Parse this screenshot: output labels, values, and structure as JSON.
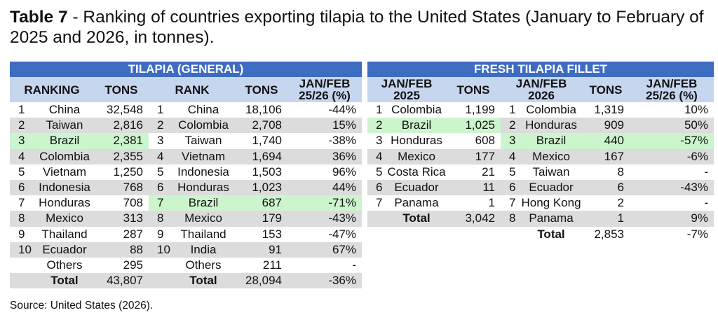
{
  "title": {
    "label": "Table 7",
    "text": " - Ranking of countries exporting tilapia to the United States (January to February of 2025 and 2026, in tonnes)."
  },
  "tables": [
    {
      "heading": "TILAPIA (GENERAL)",
      "columns": [
        "RANKING",
        "TONS",
        "RANK",
        "TONS",
        "JAN/FEB 25/26 (%)"
      ],
      "rows": [
        [
          "1",
          "China",
          "32,548",
          "1",
          "China",
          "18,106",
          "-44%"
        ],
        [
          "2",
          "Taiwan",
          "2,816",
          "2",
          "Colombia",
          "2,708",
          "15%"
        ],
        [
          "3",
          "Brazil",
          "2,381",
          "3",
          "Taiwan",
          "1,740",
          "-38%"
        ],
        [
          "4",
          "Colombia",
          "2,355",
          "4",
          "Vietnam",
          "1,694",
          "36%"
        ],
        [
          "5",
          "Vietnam",
          "1,250",
          "5",
          "Indonesia",
          "1,503",
          "96%"
        ],
        [
          "6",
          "Indonesia",
          "768",
          "6",
          "Honduras",
          "1,023",
          "44%"
        ],
        [
          "7",
          "Honduras",
          "708",
          "7",
          "Brazil",
          "687",
          "-71%"
        ],
        [
          "8",
          "Mexico",
          "313",
          "8",
          "Mexico",
          "179",
          "-43%"
        ],
        [
          "9",
          "Thailand",
          "287",
          "9",
          "Thailand",
          "153",
          "-47%"
        ],
        [
          "10",
          "Ecuador",
          "88",
          "10",
          "India",
          "91",
          "67%"
        ],
        [
          null,
          "Others",
          "295",
          null,
          "Others",
          "211",
          "-"
        ],
        [
          null,
          "Total",
          "43,807",
          null,
          "Total",
          "28,094",
          "-36%"
        ]
      ],
      "highlight": [
        {
          "row": 2,
          "block": 0
        },
        {
          "row": 6,
          "block": 1
        }
      ],
      "shaded_rows": [
        1,
        3,
        5,
        7,
        9,
        11
      ]
    },
    {
      "heading": "FRESH TILAPIA FILLET",
      "columns": [
        "JAN/FEB 2025",
        "TONS",
        "JAN/FEB 2026",
        "TONS",
        "JAN/FEB 25/26 (%)"
      ],
      "rows": [
        [
          "1",
          "Colombia",
          "1,199",
          "1",
          "Colombia",
          "1,319",
          "10%"
        ],
        [
          "2",
          "Brazil",
          "1,025",
          "2",
          "Honduras",
          "909",
          "50%"
        ],
        [
          "3",
          "Honduras",
          "608",
          "3",
          "Brazil",
          "440",
          "-57%"
        ],
        [
          "4",
          "Mexico",
          "177",
          "4",
          "Mexico",
          "167",
          "-6%"
        ],
        [
          "5",
          "Costa Rica",
          "21",
          "5",
          "Taiwan",
          "8",
          "-"
        ],
        [
          "6",
          "Ecuador",
          "11",
          "6",
          "Ecuador",
          "6",
          "-43%"
        ],
        [
          "7",
          "Panama",
          "1",
          "7",
          "Hong Kong",
          "2",
          "-"
        ],
        [
          null,
          "Total",
          "3,042",
          "8",
          "Panama",
          "1",
          "9%"
        ],
        [
          null,
          null,
          null,
          null,
          "Total",
          "2,853",
          "-7%"
        ]
      ],
      "highlight": [
        {
          "row": 1,
          "block": 0
        },
        {
          "row": 2,
          "block": 1
        }
      ],
      "shaded_rows": [
        1,
        3,
        5,
        7
      ]
    }
  ],
  "source": "Source: United States (2026)."
}
